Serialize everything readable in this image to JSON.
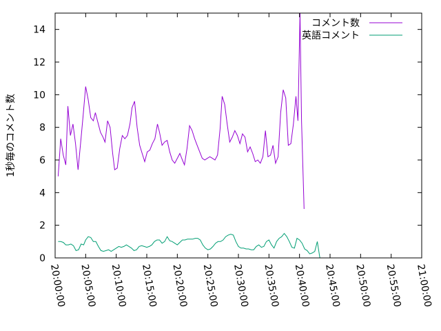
{
  "chart_data": {
    "type": "line",
    "ylabel": "1秒毎のコメント数",
    "xlabel": "",
    "title": "",
    "ylim": [
      0,
      15
    ],
    "yticks": [
      0,
      2,
      4,
      6,
      8,
      10,
      12,
      14
    ],
    "x_range": [
      "20:00:00",
      "21:00:00"
    ],
    "x_ticks": [
      "20:00:00",
      "20:05:00",
      "20:10:00",
      "20:15:00",
      "20:20:00",
      "20:25:00",
      "20:30:00",
      "20:35:00",
      "20:40:00",
      "20:45:00",
      "20:50:00",
      "20:55:00",
      "21:00:00"
    ],
    "legend_position": "top-right",
    "grid": false,
    "series": [
      {
        "name": "コメント数",
        "color": "#9400d3",
        "points": [
          [
            "20:00:30",
            5.0
          ],
          [
            "20:00:55",
            7.3
          ],
          [
            "20:01:20",
            6.3
          ],
          [
            "20:01:45",
            5.7
          ],
          [
            "20:02:05",
            9.3
          ],
          [
            "20:02:30",
            7.5
          ],
          [
            "20:02:55",
            8.2
          ],
          [
            "20:03:20",
            7.0
          ],
          [
            "20:03:45",
            5.4
          ],
          [
            "20:04:10",
            7.0
          ],
          [
            "20:04:35",
            8.7
          ],
          [
            "20:05:00",
            10.5
          ],
          [
            "20:05:25",
            9.7
          ],
          [
            "20:05:50",
            8.6
          ],
          [
            "20:06:15",
            8.4
          ],
          [
            "20:06:35",
            8.9
          ],
          [
            "20:07:00",
            8.3
          ],
          [
            "20:07:25",
            7.7
          ],
          [
            "20:07:50",
            7.4
          ],
          [
            "20:08:10",
            7.1
          ],
          [
            "20:08:35",
            8.4
          ],
          [
            "20:09:00",
            8.0
          ],
          [
            "20:09:25",
            6.4
          ],
          [
            "20:09:45",
            5.4
          ],
          [
            "20:10:10",
            5.5
          ],
          [
            "20:10:35",
            6.7
          ],
          [
            "20:11:00",
            7.5
          ],
          [
            "20:11:25",
            7.3
          ],
          [
            "20:11:50",
            7.5
          ],
          [
            "20:12:15",
            8.2
          ],
          [
            "20:12:35",
            9.2
          ],
          [
            "20:13:00",
            9.6
          ],
          [
            "20:13:25",
            8.0
          ],
          [
            "20:13:50",
            6.9
          ],
          [
            "20:14:15",
            6.4
          ],
          [
            "20:14:40",
            5.9
          ],
          [
            "20:15:05",
            6.5
          ],
          [
            "20:15:30",
            6.6
          ],
          [
            "20:15:55",
            7.0
          ],
          [
            "20:16:20",
            7.3
          ],
          [
            "20:16:45",
            8.2
          ],
          [
            "20:17:05",
            7.7
          ],
          [
            "20:17:30",
            6.9
          ],
          [
            "20:17:55",
            7.1
          ],
          [
            "20:18:20",
            7.2
          ],
          [
            "20:18:45",
            6.5
          ],
          [
            "20:19:10",
            6.0
          ],
          [
            "20:19:35",
            5.8
          ],
          [
            "20:20:00",
            6.1
          ],
          [
            "20:20:25",
            6.4
          ],
          [
            "20:20:50",
            6.0
          ],
          [
            "20:21:10",
            5.7
          ],
          [
            "20:21:35",
            6.7
          ],
          [
            "20:22:00",
            8.1
          ],
          [
            "20:22:25",
            7.8
          ],
          [
            "20:22:50",
            7.3
          ],
          [
            "20:23:15",
            6.9
          ],
          [
            "20:23:40",
            6.5
          ],
          [
            "20:24:05",
            6.1
          ],
          [
            "20:24:30",
            6.0
          ],
          [
            "20:24:55",
            6.1
          ],
          [
            "20:25:20",
            6.2
          ],
          [
            "20:25:45",
            6.1
          ],
          [
            "20:26:10",
            6.0
          ],
          [
            "20:26:35",
            6.3
          ],
          [
            "20:27:00",
            7.9
          ],
          [
            "20:27:20",
            9.9
          ],
          [
            "20:27:45",
            9.4
          ],
          [
            "20:28:10",
            8.2
          ],
          [
            "20:28:35",
            7.1
          ],
          [
            "20:29:00",
            7.4
          ],
          [
            "20:29:25",
            7.8
          ],
          [
            "20:29:50",
            7.5
          ],
          [
            "20:30:15",
            7.0
          ],
          [
            "20:30:40",
            7.6
          ],
          [
            "20:31:05",
            7.4
          ],
          [
            "20:31:30",
            6.5
          ],
          [
            "20:31:55",
            6.8
          ],
          [
            "20:32:20",
            6.4
          ],
          [
            "20:32:45",
            5.9
          ],
          [
            "20:33:10",
            6.0
          ],
          [
            "20:33:35",
            5.8
          ],
          [
            "20:34:00",
            6.2
          ],
          [
            "20:34:25",
            7.8
          ],
          [
            "20:34:50",
            6.2
          ],
          [
            "20:35:15",
            6.3
          ],
          [
            "20:35:40",
            6.9
          ],
          [
            "20:36:05",
            5.8
          ],
          [
            "20:36:30",
            6.2
          ],
          [
            "20:36:55",
            8.9
          ],
          [
            "20:37:20",
            10.3
          ],
          [
            "20:37:45",
            9.8
          ],
          [
            "20:38:10",
            6.9
          ],
          [
            "20:38:35",
            7.0
          ],
          [
            "20:39:00",
            8.2
          ],
          [
            "20:39:25",
            9.9
          ],
          [
            "20:39:45",
            8.4
          ],
          [
            "20:40:05",
            15.0
          ],
          [
            "20:40:20",
            8.4
          ],
          [
            "20:40:45",
            3.0
          ]
        ]
      },
      {
        "name": "英語コメント",
        "color": "#009e73",
        "points": [
          [
            "20:00:30",
            1.0
          ],
          [
            "20:00:55",
            1.0
          ],
          [
            "20:01:20",
            0.95
          ],
          [
            "20:01:45",
            0.8
          ],
          [
            "20:02:10",
            0.8
          ],
          [
            "20:02:35",
            0.85
          ],
          [
            "20:03:00",
            0.75
          ],
          [
            "20:03:25",
            0.45
          ],
          [
            "20:03:50",
            0.5
          ],
          [
            "20:04:15",
            0.85
          ],
          [
            "20:04:40",
            0.8
          ],
          [
            "20:05:00",
            1.1
          ],
          [
            "20:05:25",
            1.3
          ],
          [
            "20:05:50",
            1.25
          ],
          [
            "20:06:15",
            1.0
          ],
          [
            "20:06:40",
            1.0
          ],
          [
            "20:07:05",
            0.7
          ],
          [
            "20:07:30",
            0.45
          ],
          [
            "20:07:55",
            0.4
          ],
          [
            "20:08:20",
            0.45
          ],
          [
            "20:08:45",
            0.5
          ],
          [
            "20:09:10",
            0.4
          ],
          [
            "20:09:35",
            0.5
          ],
          [
            "20:10:00",
            0.6
          ],
          [
            "20:10:25",
            0.7
          ],
          [
            "20:10:50",
            0.65
          ],
          [
            "20:11:15",
            0.7
          ],
          [
            "20:11:40",
            0.8
          ],
          [
            "20:12:05",
            0.7
          ],
          [
            "20:12:30",
            0.6
          ],
          [
            "20:12:55",
            0.45
          ],
          [
            "20:13:20",
            0.5
          ],
          [
            "20:13:45",
            0.7
          ],
          [
            "20:14:10",
            0.75
          ],
          [
            "20:14:35",
            0.7
          ],
          [
            "20:15:00",
            0.65
          ],
          [
            "20:15:25",
            0.7
          ],
          [
            "20:15:50",
            0.8
          ],
          [
            "20:16:15",
            1.0
          ],
          [
            "20:16:40",
            1.1
          ],
          [
            "20:17:05",
            1.1
          ],
          [
            "20:17:30",
            0.9
          ],
          [
            "20:17:55",
            1.0
          ],
          [
            "20:18:20",
            1.3
          ],
          [
            "20:18:45",
            1.05
          ],
          [
            "20:19:10",
            1.0
          ],
          [
            "20:19:35",
            0.9
          ],
          [
            "20:20:00",
            0.8
          ],
          [
            "20:20:25",
            0.95
          ],
          [
            "20:20:50",
            1.1
          ],
          [
            "20:21:15",
            1.1
          ],
          [
            "20:21:40",
            1.15
          ],
          [
            "20:22:05",
            1.15
          ],
          [
            "20:22:30",
            1.15
          ],
          [
            "20:22:55",
            1.2
          ],
          [
            "20:23:20",
            1.2
          ],
          [
            "20:23:45",
            1.1
          ],
          [
            "20:24:10",
            0.8
          ],
          [
            "20:24:35",
            0.6
          ],
          [
            "20:25:00",
            0.5
          ],
          [
            "20:25:25",
            0.55
          ],
          [
            "20:25:50",
            0.7
          ],
          [
            "20:26:15",
            0.9
          ],
          [
            "20:26:40",
            1.0
          ],
          [
            "20:27:05",
            1.0
          ],
          [
            "20:27:30",
            1.1
          ],
          [
            "20:27:55",
            1.3
          ],
          [
            "20:28:20",
            1.4
          ],
          [
            "20:28:45",
            1.45
          ],
          [
            "20:29:10",
            1.4
          ],
          [
            "20:29:35",
            1.0
          ],
          [
            "20:30:00",
            0.7
          ],
          [
            "20:30:25",
            0.6
          ],
          [
            "20:30:50",
            0.6
          ],
          [
            "20:31:15",
            0.55
          ],
          [
            "20:31:40",
            0.55
          ],
          [
            "20:32:05",
            0.5
          ],
          [
            "20:32:30",
            0.5
          ],
          [
            "20:32:55",
            0.7
          ],
          [
            "20:33:20",
            0.8
          ],
          [
            "20:33:45",
            0.65
          ],
          [
            "20:34:10",
            0.7
          ],
          [
            "20:34:35",
            1.0
          ],
          [
            "20:35:00",
            1.1
          ],
          [
            "20:35:25",
            0.8
          ],
          [
            "20:35:50",
            0.6
          ],
          [
            "20:36:15",
            1.0
          ],
          [
            "20:36:40",
            1.2
          ],
          [
            "20:37:05",
            1.3
          ],
          [
            "20:37:30",
            1.5
          ],
          [
            "20:37:55",
            1.3
          ],
          [
            "20:38:20",
            1.0
          ],
          [
            "20:38:45",
            0.65
          ],
          [
            "20:39:10",
            0.6
          ],
          [
            "20:39:35",
            1.2
          ],
          [
            "20:40:00",
            1.1
          ],
          [
            "20:40:25",
            0.9
          ],
          [
            "20:40:50",
            0.55
          ],
          [
            "20:41:15",
            0.45
          ],
          [
            "20:41:40",
            0.25
          ],
          [
            "20:42:05",
            0.3
          ],
          [
            "20:42:30",
            0.4
          ],
          [
            "20:42:55",
            1.0
          ],
          [
            "20:43:20",
            0.0
          ]
        ]
      }
    ]
  }
}
